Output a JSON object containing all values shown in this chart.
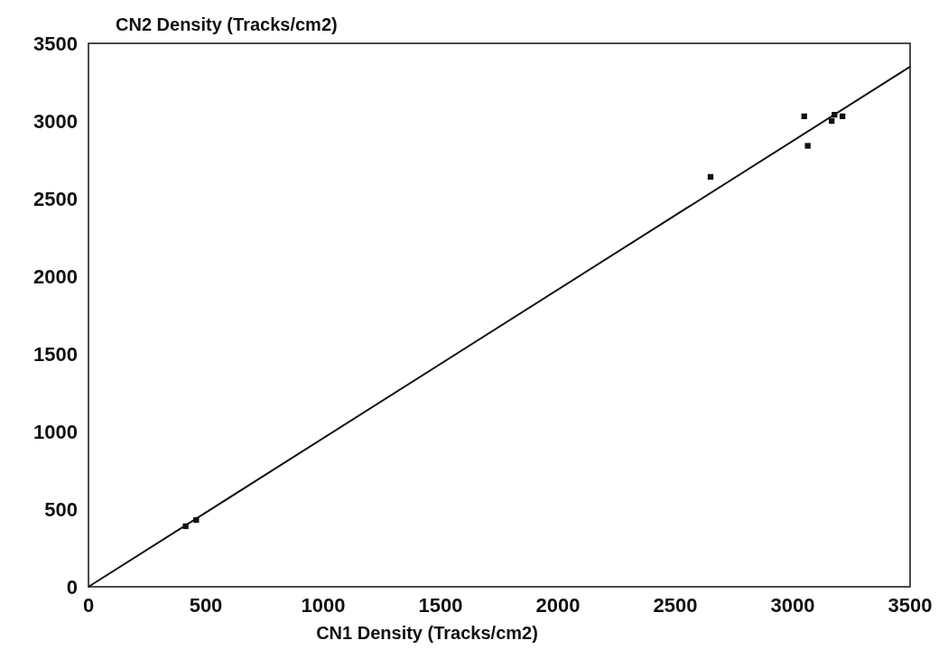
{
  "chart_data": {
    "type": "scatter",
    "xlabel": "CN1 Density (Tracks/cm2)",
    "ylabel": "CN2 Density (Tracks/cm2)",
    "xlim": [
      0,
      3500
    ],
    "ylim": [
      0,
      3500
    ],
    "xticks": [
      0,
      500,
      1000,
      1500,
      2000,
      2500,
      3000,
      3500
    ],
    "yticks": [
      0,
      500,
      1000,
      1500,
      2000,
      2500,
      3000,
      3500
    ],
    "grid": false,
    "series": [
      {
        "marker": "square",
        "color": "#111111",
        "x": [
          414,
          459,
          2650,
          3049,
          3064,
          3166,
          3178,
          3212
        ],
        "values": [
          390,
          430,
          2640,
          3030,
          2840,
          3000,
          3040,
          3030
        ]
      },
      {
        "type": "line",
        "marker": "none",
        "color": "#111111",
        "x": [
          0,
          3500
        ],
        "values": [
          0,
          3350
        ]
      }
    ]
  }
}
